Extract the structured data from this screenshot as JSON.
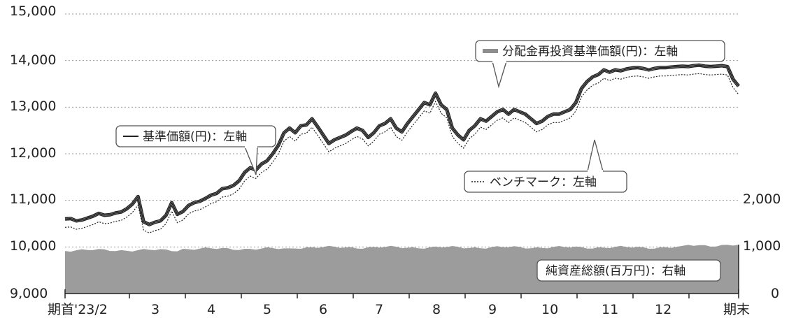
{
  "chart_data": {
    "type": "line",
    "y_left": {
      "min": 9000,
      "max": 15000,
      "ticks": [
        "9,000",
        "10,000",
        "11,000",
        "12,000",
        "13,000",
        "14,000",
        "15,000"
      ]
    },
    "y_right": {
      "min": 0,
      "max": 4000,
      "ticks": [
        "0",
        "1,000",
        "2,000"
      ]
    },
    "x_ticks": [
      "期首'23/2",
      "3",
      "4",
      "5",
      "6",
      "7",
      "8",
      "9",
      "10",
      "11",
      "12",
      "期末"
    ],
    "grid": true,
    "colors": {
      "nav": "#222222",
      "reinvested_outline": "#222222",
      "reinvested_fill": "#cfcfcf",
      "benchmark": "#222222",
      "assets": "#9c9c9c",
      "grid": "#9a9a9a"
    },
    "callouts": {
      "reinvested": "分配金再投資基準価額(円)：左軸",
      "nav": "基準価額(円)：左軸",
      "benchmark": "ベンチマーク：左軸",
      "assets": "純資産総額(百万円)：右軸"
    },
    "series": [
      {
        "name": "基準価額(円)",
        "axis": "left",
        "style": "solid",
        "x": [
          0,
          0.1,
          0.2,
          0.3,
          0.4,
          0.5,
          0.6,
          0.7,
          0.8,
          0.9,
          1.0,
          1.1,
          1.2,
          1.3,
          1.4,
          1.5,
          1.6,
          1.7,
          1.8,
          1.9,
          2.0,
          2.1,
          2.2,
          2.3,
          2.4,
          2.5,
          2.6,
          2.7,
          2.8,
          2.9,
          3.0,
          3.1,
          3.2,
          3.3,
          3.4,
          3.5,
          3.6,
          3.7,
          3.8,
          3.9,
          4.0,
          4.1,
          4.2,
          4.3,
          4.4,
          4.5,
          4.6,
          4.7,
          4.8,
          4.9,
          5.0,
          5.1,
          5.2,
          5.3,
          5.4,
          5.5,
          5.6,
          5.7,
          5.8,
          5.9,
          6.0,
          6.1,
          6.2,
          6.3,
          6.4,
          6.5,
          6.6,
          6.7,
          6.8,
          6.9,
          7.0,
          7.1,
          7.2,
          7.3,
          7.4,
          7.5,
          7.6,
          7.7,
          7.8,
          7.9,
          8.0,
          8.1,
          8.2,
          8.3,
          8.4,
          8.5,
          8.6,
          8.7,
          8.8,
          8.9,
          9.0,
          9.1,
          9.2,
          9.3,
          9.4,
          9.5,
          9.6,
          9.7,
          9.8,
          9.9,
          10.0,
          10.1,
          10.2,
          10.3,
          10.4,
          10.5,
          10.6,
          10.7,
          10.8,
          10.9,
          11.0,
          11.1,
          11.2,
          11.3,
          11.4,
          11.5,
          11.6,
          11.7,
          11.8,
          11.9,
          12.0
        ],
        "y": [
          10600,
          10610,
          10560,
          10580,
          10620,
          10660,
          10720,
          10680,
          10690,
          10730,
          10750,
          10820,
          10920,
          11080,
          10540,
          10480,
          10530,
          10560,
          10680,
          10950,
          10700,
          10760,
          10890,
          10950,
          10980,
          11040,
          11110,
          11150,
          11250,
          11270,
          11320,
          11420,
          11600,
          11700,
          11650,
          11780,
          11850,
          12000,
          12180,
          12450,
          12550,
          12450,
          12600,
          12620,
          12750,
          12580,
          12400,
          12220,
          12300,
          12350,
          12400,
          12480,
          12550,
          12500,
          12350,
          12450,
          12600,
          12650,
          12750,
          12550,
          12470,
          12650,
          12800,
          12950,
          13100,
          13050,
          13300,
          13050,
          12950,
          12550,
          12400,
          12300,
          12500,
          12600,
          12750,
          12700,
          12800,
          12900,
          12950,
          12850,
          12950,
          12900,
          12850,
          12750,
          12650,
          12700,
          12800,
          12850,
          12850,
          12900,
          12950,
          13100,
          13400,
          13550,
          13650,
          13700,
          13800,
          13750,
          13800,
          13780,
          13820,
          13840,
          13850,
          13830,
          13800,
          13830,
          13850,
          13850,
          13860,
          13870,
          13880,
          13870,
          13890,
          13900,
          13880,
          13870,
          13880,
          13890,
          13870,
          13600,
          13450
        ]
      }
    ]
  }
}
